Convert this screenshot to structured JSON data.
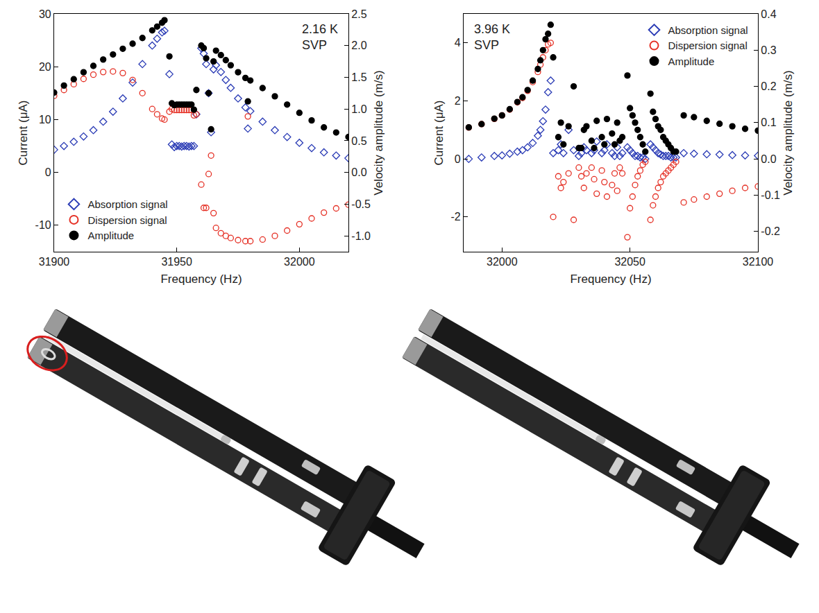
{
  "chart_data": [
    {
      "type": "scatter",
      "annotation": [
        "2.16 K",
        "SVP"
      ],
      "x_label": "Frequency (Hz)",
      "y_label": "Current (μA)",
      "y2_label": "Velocity amplitude (m/s)",
      "xlim": [
        31900,
        32020
      ],
      "xticks": [
        31900,
        31950,
        32000
      ],
      "ylim": [
        -15,
        30
      ],
      "yticks": [
        -10,
        0,
        10,
        20,
        30
      ],
      "y2lim": [
        -1.25,
        2.5
      ],
      "y2ticks": [
        {
          "value": -1,
          "label": "-1.0"
        },
        -0.5,
        {
          "value": 0,
          "label": "0.0"
        },
        0.5,
        {
          "value": 1,
          "label": "1.0"
        },
        1.5,
        {
          "value": 2,
          "label": "2.0"
        },
        2.5
      ],
      "legend": "lower left",
      "grid": false,
      "x": [
        31900,
        31904,
        31908,
        31912,
        31916,
        31920,
        31924,
        31928,
        31932,
        31936,
        31940,
        31942,
        31944,
        31945,
        31947,
        31948,
        31949,
        31950,
        31951,
        31952,
        31953,
        31954,
        31955,
        31956,
        31957,
        31958,
        31960,
        31961,
        31962,
        31963,
        31964,
        31965,
        31966,
        31968,
        31970,
        31972,
        31975,
        31978,
        31979,
        31980,
        31985,
        31990,
        31995,
        32000,
        32005,
        32010,
        32015,
        32020
      ],
      "series": [
        {
          "name": "Absorption signal",
          "color": "#2a3bb5",
          "marker": "diamond-open",
          "values": [
            4.3,
            5.0,
            5.8,
            6.8,
            8.0,
            9.6,
            11.5,
            14.0,
            17.0,
            20.5,
            24.0,
            25.3,
            26.5,
            26.8,
            18.6,
            5.3,
            4.8,
            5.0,
            5.0,
            4.9,
            5.0,
            5.0,
            4.9,
            5.0,
            5.0,
            11.0,
            23.5,
            22.5,
            20.5,
            15.0,
            7.6,
            19.5,
            20.3,
            19.0,
            17.5,
            16.0,
            14.0,
            12.3,
            8.3,
            11.6,
            9.6,
            8.0,
            6.7,
            5.6,
            4.6,
            3.8,
            3.2,
            2.7
          ]
        },
        {
          "name": "Dispersion signal",
          "color": "#e53025",
          "marker": "circle-open",
          "values": [
            14.5,
            15.6,
            16.7,
            17.7,
            18.5,
            19.0,
            19.1,
            18.8,
            17.5,
            15.0,
            12.0,
            11.0,
            10.2,
            10.0,
            11.5,
            12.0,
            11.8,
            11.8,
            11.8,
            11.8,
            11.8,
            11.8,
            11.8,
            11.8,
            10.8,
            11.0,
            -2.3,
            -6.7,
            -6.7,
            -0.3,
            3.2,
            -7.7,
            -10.5,
            -11.5,
            -12.0,
            -12.4,
            -12.8,
            -13.0,
            10.6,
            -13.0,
            -12.7,
            -12.0,
            -11.0,
            -9.8,
            -8.7,
            -7.6,
            -6.8,
            -6.1
          ]
        },
        {
          "name": "Amplitude",
          "color": "#000000",
          "marker": "circle",
          "axis": "y2",
          "values": [
            1.26,
            1.37,
            1.47,
            1.58,
            1.68,
            1.78,
            1.86,
            1.95,
            2.03,
            2.12,
            2.24,
            2.3,
            2.36,
            2.4,
            1.83,
            1.09,
            1.06,
            1.07,
            1.07,
            1.07,
            1.07,
            1.07,
            1.07,
            1.07,
            0.99,
            1.3,
            2.0,
            1.96,
            1.8,
            1.25,
            0.68,
            1.75,
            1.92,
            1.85,
            1.77,
            1.69,
            1.58,
            1.49,
            1.12,
            1.45,
            1.33,
            1.2,
            1.07,
            0.94,
            0.82,
            0.71,
            0.63,
            0.56
          ]
        }
      ]
    },
    {
      "type": "scatter",
      "annotation": [
        "3.96 K",
        "SVP"
      ],
      "x_label": "Frequency (Hz)",
      "y_label": "Current (μA)",
      "y2_label": "Velocity amplitude (m/s)",
      "xlim": [
        31985,
        32100
      ],
      "xticks": [
        32000,
        32050,
        32100
      ],
      "ylim": [
        -3.2,
        5
      ],
      "yticks": [
        -2,
        0,
        2,
        4
      ],
      "y2lim": [
        -0.256,
        0.4
      ],
      "y2ticks": [
        -0.2,
        -0.1,
        {
          "value": 0,
          "label": "0.0"
        },
        0.1,
        0.2,
        0.3,
        0.4
      ],
      "legend": "upper right",
      "grid": false,
      "x": [
        31987,
        31992,
        31997,
        32000,
        32003,
        32006,
        32008,
        32010,
        32012,
        32014,
        32015,
        32016,
        32017,
        32018,
        32019,
        32020,
        32022,
        32023,
        32024,
        32026,
        32028,
        32030,
        32031,
        32032,
        32033,
        32035,
        32036,
        32037,
        32039,
        32040,
        32041,
        32043,
        32044,
        32045,
        32046,
        32047,
        32049,
        32050,
        32051,
        32052,
        32053,
        32054,
        32055,
        32056,
        32058,
        32059,
        32060,
        32061,
        32062,
        32063,
        32064,
        32065,
        32066,
        32067,
        32068,
        32071,
        32075,
        32080,
        32085,
        32090,
        32095,
        32100
      ],
      "series": [
        {
          "name": "Absorption signal",
          "color": "#2a3bb5",
          "marker": "diamond-open",
          "values": [
            0.0,
            0.05,
            0.1,
            0.12,
            0.18,
            0.25,
            0.3,
            0.4,
            0.55,
            0.8,
            1.0,
            1.3,
            1.7,
            2.3,
            2.7,
            0.2,
            0.3,
            0.5,
            0.2,
            1.0,
            0.3,
            0.1,
            0.2,
            0.4,
            0.3,
            0.2,
            0.3,
            0.6,
            0.2,
            0.3,
            0.5,
            0.2,
            0.1,
            0.4,
            0.1,
            0.2,
            0.4,
            0.3,
            0.2,
            0.1,
            0.1,
            0.05,
            0.05,
            0.0,
            0.5,
            0.4,
            0.3,
            0.2,
            0.15,
            0.1,
            0.1,
            0.1,
            0.05,
            0.05,
            0.05,
            0.2,
            0.18,
            0.16,
            0.15,
            0.13,
            0.12,
            0.11
          ]
        },
        {
          "name": "Dispersion signal",
          "color": "#e53025",
          "marker": "circle-open",
          "values": [
            1.08,
            1.2,
            1.38,
            1.5,
            1.7,
            1.95,
            2.1,
            2.35,
            2.65,
            3.0,
            3.25,
            3.5,
            3.75,
            3.95,
            4.0,
            -2.0,
            -0.6,
            -1.0,
            -0.8,
            -0.5,
            -2.1,
            -0.3,
            -0.6,
            -1.0,
            -0.5,
            -0.3,
            -0.7,
            -1.2,
            -0.4,
            -0.8,
            -1.3,
            -0.9,
            -0.5,
            -1.1,
            -0.3,
            -0.5,
            -2.7,
            -1.7,
            -1.3,
            -0.9,
            -0.6,
            -0.4,
            -0.2,
            -0.1,
            -2.1,
            -1.6,
            -1.3,
            -1.0,
            -0.8,
            -0.6,
            -0.5,
            -0.4,
            -0.3,
            -0.2,
            -0.1,
            -1.5,
            -1.4,
            -1.3,
            -1.2,
            -1.1,
            -1.0,
            -0.95
          ]
        },
        {
          "name": "Amplitude",
          "color": "#000000",
          "marker": "circle",
          "axis": "y2",
          "values": [
            0.087,
            0.096,
            0.111,
            0.12,
            0.137,
            0.157,
            0.17,
            0.19,
            0.216,
            0.248,
            0.272,
            0.3,
            0.33,
            0.345,
            0.37,
            0.28,
            0.06,
            0.1,
            0.04,
            0.09,
            0.2,
            0.03,
            0.03,
            0.08,
            0.09,
            0.05,
            0.03,
            0.105,
            0.06,
            0.04,
            0.11,
            0.07,
            0.04,
            0.1,
            0.05,
            0.06,
            0.23,
            0.14,
            0.12,
            0.1,
            0.08,
            0.06,
            0.04,
            0.02,
            0.18,
            0.13,
            0.11,
            0.09,
            0.08,
            0.06,
            0.05,
            0.04,
            0.03,
            0.02,
            0.02,
            0.12,
            0.115,
            0.105,
            0.097,
            0.09,
            0.083,
            0.078
          ]
        }
      ]
    }
  ]
}
